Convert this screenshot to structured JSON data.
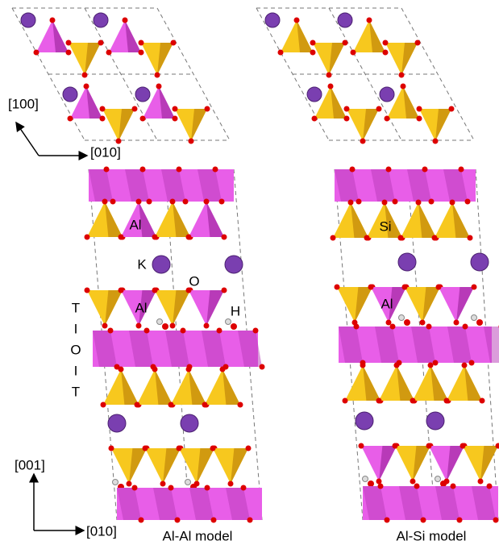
{
  "top_view": {
    "axis_a": "[100]",
    "axis_b": "[010]"
  },
  "side_view": {
    "axis_c": "[001]",
    "axis_b": "[010]"
  },
  "left_model": {
    "caption": "Al-Al model",
    "labels": [
      "Al",
      "K",
      "O",
      "Al",
      "H"
    ]
  },
  "right_model": {
    "caption": "Al-Si model",
    "labels": [
      "Si",
      "Al"
    ]
  },
  "layer_sequence": [
    "T",
    "I",
    "O",
    "I",
    "T"
  ]
}
